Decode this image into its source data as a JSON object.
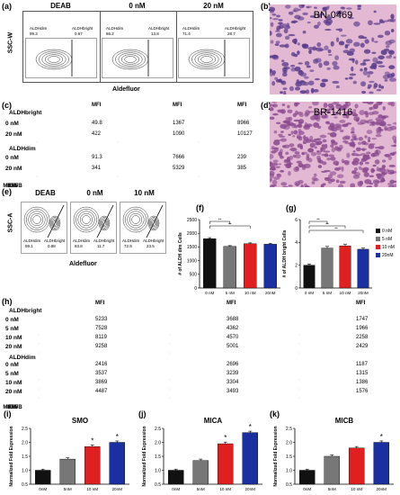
{
  "panels": {
    "a": {
      "label": "(a)",
      "conditions": [
        "DEAB",
        "0 nM",
        "20 nM"
      ],
      "ylabel": "SSC-W",
      "xlabel": "Aldefluor",
      "gates": [
        {
          "dim": "ALDHdim",
          "dim_val": "99.3",
          "bright": "ALDHbright",
          "bright_val": "0.67"
        },
        {
          "dim": "ALDHdim",
          "dim_val": "86.2",
          "bright": "ALDHbright",
          "bright_val": "13.8"
        },
        {
          "dim": "ALDHdim",
          "dim_val": "71.4",
          "bright": "ALDHbright",
          "bright_val": "28.7"
        }
      ]
    },
    "b": {
      "label": "(b)",
      "title": "BN-0469"
    },
    "c": {
      "label": "(c)",
      "group1": "ALDHbright",
      "group2": "ALDHdim",
      "rows": [
        "0  nM",
        "20  nM",
        "0  nM",
        "20  nM"
      ],
      "mfi": "MFI",
      "markers": [
        "DR5",
        "Fas",
        "MICA/B"
      ],
      "values": [
        [
          "49.8",
          "1367",
          "8966"
        ],
        [
          "422",
          "1090",
          "10127"
        ],
        [
          "91.3",
          "7666",
          "239"
        ],
        [
          "341",
          "5329",
          "385"
        ]
      ]
    },
    "d": {
      "label": "(d)",
      "title": "BR-1416"
    },
    "e": {
      "label": "(e)",
      "conditions": [
        "DEAB",
        "0 nM",
        "10 nM"
      ],
      "ylabel": "SSC-A",
      "xlabel": "Aldefluor",
      "gates": [
        {
          "dim": "ALDHdim",
          "dim_val": "99.1",
          "bright": "ALDHbright",
          "bright_val": "0.88"
        },
        {
          "dim": "ALDHdim",
          "dim_val": "83.8",
          "bright": "ALDHbright",
          "bright_val": "11.7"
        },
        {
          "dim": "ALDHdim",
          "dim_val": "72.9",
          "bright": "ALDHbright",
          "bright_val": "23.5"
        }
      ]
    },
    "f": {
      "label": "(f)"
    },
    "g": {
      "label": "(g)"
    },
    "h": {
      "label": "(h)",
      "group1": "ALDHbright",
      "group2": "ALDHdim",
      "rows": [
        "0  nM",
        "5  nM",
        "10  nM",
        "20  nM",
        "0  nM",
        "5  nM",
        "10  nM",
        "20  nM"
      ],
      "mfi": "MFI",
      "markers": [
        "DR5",
        "Fas",
        "MICA/B"
      ],
      "values": [
        [
          "5233",
          "3688",
          "1747"
        ],
        [
          "7528",
          "4362",
          "1966"
        ],
        [
          "8119",
          "4570",
          "2258"
        ],
        [
          "9258",
          "5001",
          "2429"
        ],
        [
          "2416",
          "2696",
          "1187"
        ],
        [
          "3537",
          "3239",
          "1315"
        ],
        [
          "3869",
          "3304",
          "1386"
        ],
        [
          "4487",
          "3493",
          "1576"
        ]
      ]
    },
    "i": {
      "label": "(i)"
    },
    "j": {
      "label": "(j)"
    },
    "k": {
      "label": "(k)"
    }
  },
  "chart_data": [
    {
      "panel": "f",
      "type": "bar",
      "categories": [
        "0 nM",
        "5 nM",
        "10 nM",
        "20nM"
      ],
      "values": [
        1800,
        1520,
        1620,
        1600
      ],
      "errors": [
        40,
        30,
        30,
        30
      ],
      "ylabel": "# of ALDH dim Cells",
      "ylim": [
        0,
        2500
      ],
      "yticks": [
        "0",
        "500",
        "1000",
        "1500",
        "2000",
        "2500"
      ],
      "sig": [
        {
          "from": 0,
          "to": 1,
          "text": "**"
        },
        {
          "from": 0,
          "to": 2,
          "text": "**"
        }
      ],
      "colors": [
        "#111111",
        "#777777",
        "#e02020",
        "#1a2fa0"
      ]
    },
    {
      "panel": "g",
      "type": "bar",
      "categories": [
        "0 nM",
        "5 nM",
        "10 nM",
        "20nM"
      ],
      "values": [
        2.0,
        3.5,
        3.7,
        3.4
      ],
      "errors": [
        0.1,
        0.15,
        0.15,
        0.1
      ],
      "ylabel": "# of ALDH bright Cells",
      "ylim": [
        0,
        6
      ],
      "yticks": [
        "0",
        "2",
        "4",
        "6"
      ],
      "sig": [
        {
          "from": 0,
          "to": 1,
          "text": "**"
        },
        {
          "from": 0,
          "to": 2,
          "text": "**"
        },
        {
          "from": 0,
          "to": 3,
          "text": "**"
        }
      ],
      "legend": [
        "0 nM",
        "5 nM",
        "10 nM",
        "20nM"
      ],
      "colors": [
        "#111111",
        "#777777",
        "#e02020",
        "#1a2fa0"
      ]
    },
    {
      "panel": "i",
      "type": "bar",
      "title": "SMO",
      "categories": [
        "0nM",
        "5nM",
        "10 nM",
        "20nM"
      ],
      "values": [
        1.0,
        1.4,
        1.85,
        2.0
      ],
      "errors": [
        0.04,
        0.05,
        0.06,
        0.05
      ],
      "ylabel": "Normalized Fold Expression",
      "ylim": [
        0.5,
        2.5
      ],
      "yticks": [
        "0.5",
        "1.0",
        "1.5",
        "2.0",
        "2.5"
      ],
      "stars": [
        false,
        false,
        true,
        true
      ],
      "colors": [
        "#111111",
        "#777777",
        "#e02020",
        "#1a2fa0"
      ]
    },
    {
      "panel": "j",
      "type": "bar",
      "title": "MICA",
      "categories": [
        "0nM",
        "5nM",
        "10 nM",
        "20nM"
      ],
      "values": [
        1.0,
        1.35,
        1.95,
        2.35
      ],
      "errors": [
        0.04,
        0.05,
        0.06,
        0.05
      ],
      "ylabel": "Normalized Fold Expression",
      "ylim": [
        0.5,
        2.5
      ],
      "yticks": [
        "0.5",
        "1.0",
        "1.5",
        "2.0",
        "2.5"
      ],
      "stars": [
        false,
        false,
        true,
        true
      ],
      "colors": [
        "#111111",
        "#777777",
        "#e02020",
        "#1a2fa0"
      ]
    },
    {
      "panel": "k",
      "type": "bar",
      "title": "MICB",
      "categories": [
        "0nM",
        "5nM",
        "10 nM",
        "20nM"
      ],
      "values": [
        1.0,
        1.5,
        1.8,
        2.0
      ],
      "errors": [
        0.04,
        0.05,
        0.05,
        0.05
      ],
      "ylabel": "Normalized Fold Expression",
      "ylim": [
        0.5,
        2.5
      ],
      "yticks": [
        "0.5",
        "1.0",
        "1.5",
        "2.0",
        "2.5"
      ],
      "stars": [
        false,
        false,
        false,
        true
      ],
      "colors": [
        "#111111",
        "#777777",
        "#e02020",
        "#1a2fa0"
      ]
    }
  ]
}
